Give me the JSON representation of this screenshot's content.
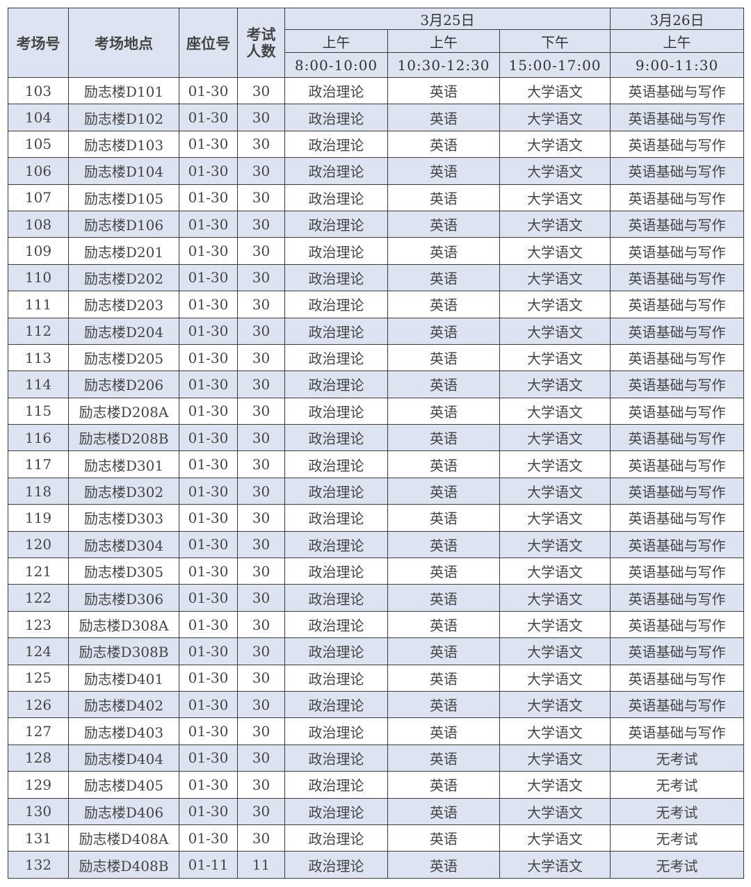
{
  "header": {
    "room_no": "考场号",
    "location": "考场地点",
    "seat_no": "座位号",
    "examinees": "考试人数",
    "day1": "3月25日",
    "day2": "3月26日",
    "sessions": [
      {
        "period": "上午",
        "time": "8:00-10:00"
      },
      {
        "period": "上午",
        "time": "10:30-12:30"
      },
      {
        "period": "下午",
        "time": "15:00-17:00"
      },
      {
        "period": "上午",
        "time": "9:00-11:30"
      }
    ]
  },
  "colors": {
    "header_bg": "#dde3f1",
    "alt_row_bg": "#dde3f1",
    "border": "#3a3a3a"
  },
  "rows": [
    [
      "103",
      "励志楼D101",
      "01-30",
      "30",
      "政治理论",
      "英语",
      "大学语文",
      "英语基础与写作"
    ],
    [
      "104",
      "励志楼D102",
      "01-30",
      "30",
      "政治理论",
      "英语",
      "大学语文",
      "英语基础与写作"
    ],
    [
      "105",
      "励志楼D103",
      "01-30",
      "30",
      "政治理论",
      "英语",
      "大学语文",
      "英语基础与写作"
    ],
    [
      "106",
      "励志楼D104",
      "01-30",
      "30",
      "政治理论",
      "英语",
      "大学语文",
      "英语基础与写作"
    ],
    [
      "107",
      "励志楼D105",
      "01-30",
      "30",
      "政治理论",
      "英语",
      "大学语文",
      "英语基础与写作"
    ],
    [
      "108",
      "励志楼D106",
      "01-30",
      "30",
      "政治理论",
      "英语",
      "大学语文",
      "英语基础与写作"
    ],
    [
      "109",
      "励志楼D201",
      "01-30",
      "30",
      "政治理论",
      "英语",
      "大学语文",
      "英语基础与写作"
    ],
    [
      "110",
      "励志楼D202",
      "01-30",
      "30",
      "政治理论",
      "英语",
      "大学语文",
      "英语基础与写作"
    ],
    [
      "111",
      "励志楼D203",
      "01-30",
      "30",
      "政治理论",
      "英语",
      "大学语文",
      "英语基础与写作"
    ],
    [
      "112",
      "励志楼D204",
      "01-30",
      "30",
      "政治理论",
      "英语",
      "大学语文",
      "英语基础与写作"
    ],
    [
      "113",
      "励志楼D205",
      "01-30",
      "30",
      "政治理论",
      "英语",
      "大学语文",
      "英语基础与写作"
    ],
    [
      "114",
      "励志楼D206",
      "01-30",
      "30",
      "政治理论",
      "英语",
      "大学语文",
      "英语基础与写作"
    ],
    [
      "115",
      "励志楼D208A",
      "01-30",
      "30",
      "政治理论",
      "英语",
      "大学语文",
      "英语基础与写作"
    ],
    [
      "116",
      "励志楼D208B",
      "01-30",
      "30",
      "政治理论",
      "英语",
      "大学语文",
      "英语基础与写作"
    ],
    [
      "117",
      "励志楼D301",
      "01-30",
      "30",
      "政治理论",
      "英语",
      "大学语文",
      "英语基础与写作"
    ],
    [
      "118",
      "励志楼D302",
      "01-30",
      "30",
      "政治理论",
      "英语",
      "大学语文",
      "英语基础与写作"
    ],
    [
      "119",
      "励志楼D303",
      "01-30",
      "30",
      "政治理论",
      "英语",
      "大学语文",
      "英语基础与写作"
    ],
    [
      "120",
      "励志楼D304",
      "01-30",
      "30",
      "政治理论",
      "英语",
      "大学语文",
      "英语基础与写作"
    ],
    [
      "121",
      "励志楼D305",
      "01-30",
      "30",
      "政治理论",
      "英语",
      "大学语文",
      "英语基础与写作"
    ],
    [
      "122",
      "励志楼D306",
      "01-30",
      "30",
      "政治理论",
      "英语",
      "大学语文",
      "英语基础与写作"
    ],
    [
      "123",
      "励志楼D308A",
      "01-30",
      "30",
      "政治理论",
      "英语",
      "大学语文",
      "英语基础与写作"
    ],
    [
      "124",
      "励志楼D308B",
      "01-30",
      "30",
      "政治理论",
      "英语",
      "大学语文",
      "英语基础与写作"
    ],
    [
      "125",
      "励志楼D401",
      "01-30",
      "30",
      "政治理论",
      "英语",
      "大学语文",
      "英语基础与写作"
    ],
    [
      "126",
      "励志楼D402",
      "01-30",
      "30",
      "政治理论",
      "英语",
      "大学语文",
      "英语基础与写作"
    ],
    [
      "127",
      "励志楼D403",
      "01-30",
      "30",
      "政治理论",
      "英语",
      "大学语文",
      "英语基础与写作"
    ],
    [
      "128",
      "励志楼D404",
      "01-30",
      "30",
      "政治理论",
      "英语",
      "大学语文",
      "无考试"
    ],
    [
      "129",
      "励志楼D405",
      "01-30",
      "30",
      "政治理论",
      "英语",
      "大学语文",
      "无考试"
    ],
    [
      "130",
      "励志楼D406",
      "01-30",
      "30",
      "政治理论",
      "英语",
      "大学语文",
      "无考试"
    ],
    [
      "131",
      "励志楼D408A",
      "01-30",
      "30",
      "政治理论",
      "英语",
      "大学语文",
      "无考试"
    ],
    [
      "132",
      "励志楼D408B",
      "01-11",
      "11",
      "政治理论",
      "英语",
      "大学语文",
      "无考试"
    ]
  ]
}
